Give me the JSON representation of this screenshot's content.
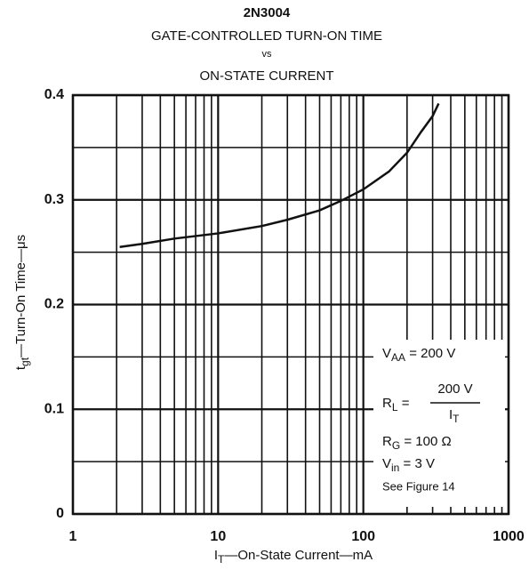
{
  "chart_data": {
    "type": "line",
    "title": "2N3004",
    "subtitle": [
      "GATE-CONTROLLED TURN-ON TIME",
      "vs",
      "ON-STATE CURRENT"
    ],
    "ylabel": {
      "symbol": "t",
      "sub": "gt",
      "text": "—Turn-On Time—μs"
    },
    "xlabel": {
      "symbol": "I",
      "sub": "T",
      "text": "—On-State Current—mA"
    },
    "xscale": "log",
    "xlim": [
      1,
      1000
    ],
    "xticks": [
      1,
      10,
      100,
      1000
    ],
    "xminor": [
      2,
      3,
      4,
      5,
      6,
      7,
      8,
      9,
      20,
      30,
      40,
      50,
      60,
      70,
      80,
      90,
      200,
      300,
      400,
      500,
      600,
      700,
      800,
      900
    ],
    "ylim": [
      0,
      0.4
    ],
    "yticks": [
      0,
      0.1,
      0.2,
      0.3,
      0.4
    ],
    "yminor": [
      0.05,
      0.15,
      0.25,
      0.35
    ],
    "grid": true,
    "series": [
      {
        "color": "#111111",
        "x": [
          2.1,
          3,
          5,
          10,
          20,
          30,
          50,
          70,
          100,
          150,
          200,
          250,
          300,
          330
        ],
        "values": [
          0.255,
          0.258,
          0.263,
          0.268,
          0.275,
          0.281,
          0.29,
          0.299,
          0.31,
          0.327,
          0.345,
          0.365,
          0.38,
          0.392
        ]
      }
    ],
    "annotations": {
      "vaa": {
        "symbol": "V",
        "sub": "AA",
        "text": " = 200 V"
      },
      "rl": {
        "symbol": "R",
        "sub": "L",
        "text": " = ",
        "numerator": "200 V",
        "denominator": {
          "symbol": "I",
          "sub": "T"
        }
      },
      "rg": {
        "symbol": "R",
        "sub": "G",
        "text": " = 100 Ω"
      },
      "vin": {
        "symbol": "V",
        "sub": "in",
        "text": " = 3 V"
      },
      "see": "See Figure 14"
    }
  }
}
